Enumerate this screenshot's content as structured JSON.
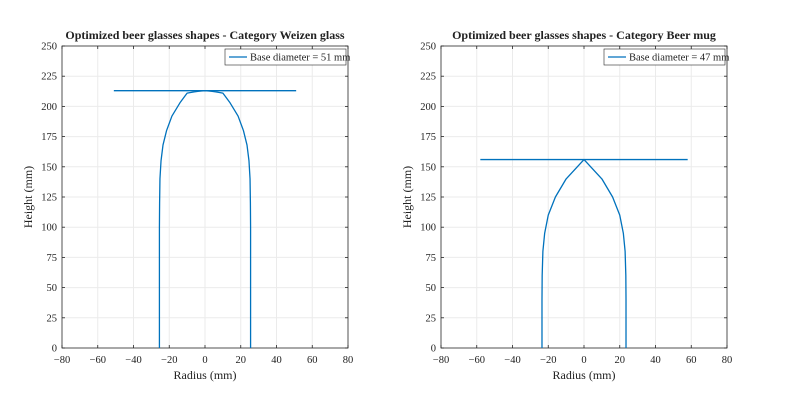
{
  "chart_data": [
    {
      "type": "line",
      "title": "Optimized beer glasses shapes - Category Weizen glass",
      "xlabel": "Radius (mm)",
      "ylabel": "Height (mm)",
      "xlim": [
        -80,
        80
      ],
      "ylim": [
        0,
        250
      ],
      "xticks": [
        -80,
        -60,
        -40,
        -20,
        0,
        20,
        40,
        60,
        80
      ],
      "yticks": [
        0,
        25,
        50,
        75,
        100,
        125,
        150,
        175,
        200,
        225,
        250
      ],
      "grid": true,
      "legend_position": "top-right",
      "series": [
        {
          "name": "Base diameter =  51 mm",
          "x": [
            -25.5,
            -25.5,
            -25.5,
            -25.4,
            -25.2,
            -24.6,
            -23.5,
            -21.5,
            -18.5,
            -14,
            -11,
            -10,
            -8,
            -6,
            -4,
            -2,
            0,
            2,
            4,
            6,
            8,
            10,
            11,
            14,
            18.5,
            21.5,
            23.5,
            24.6,
            25.2,
            25.4,
            25.5,
            25.5,
            25.5
          ],
          "y": [
            0,
            60,
            100,
            120,
            140,
            155,
            168,
            180,
            192,
            203,
            209,
            211,
            211.5,
            212,
            212.5,
            212.8,
            213,
            212.8,
            212.5,
            212,
            211.5,
            211,
            209,
            203,
            192,
            180,
            168,
            155,
            140,
            120,
            100,
            60,
            0
          ]
        }
      ],
      "rim": {
        "x": [
          -51,
          51
        ],
        "y": [
          213,
          213
        ]
      }
    },
    {
      "type": "line",
      "title": "Optimized beer glasses shapes - Category Beer mug",
      "xlabel": "Radius (mm)",
      "ylabel": "Height (mm)",
      "xlim": [
        -80,
        80
      ],
      "ylim": [
        0,
        250
      ],
      "xticks": [
        -80,
        -60,
        -40,
        -20,
        0,
        20,
        40,
        60,
        80
      ],
      "yticks": [
        0,
        25,
        50,
        75,
        100,
        125,
        150,
        175,
        200,
        225,
        250
      ],
      "grid": true,
      "legend_position": "top-right",
      "series": [
        {
          "name": "Base diameter =  47 mm",
          "x": [
            -23.5,
            -23.5,
            -23.4,
            -23,
            -22,
            -20,
            -16,
            -10,
            0,
            10,
            16,
            20,
            22,
            23,
            23.4,
            23.5,
            23.5
          ],
          "y": [
            0,
            40,
            60,
            80,
            95,
            110,
            125,
            140,
            156,
            140,
            125,
            110,
            95,
            80,
            60,
            40,
            0
          ]
        }
      ],
      "rim": {
        "x": [
          -58,
          58
        ],
        "y": [
          156,
          156
        ]
      }
    }
  ],
  "colors": {
    "line": "#0072BD",
    "axis": "#262626",
    "grid": "#ebebeb"
  }
}
